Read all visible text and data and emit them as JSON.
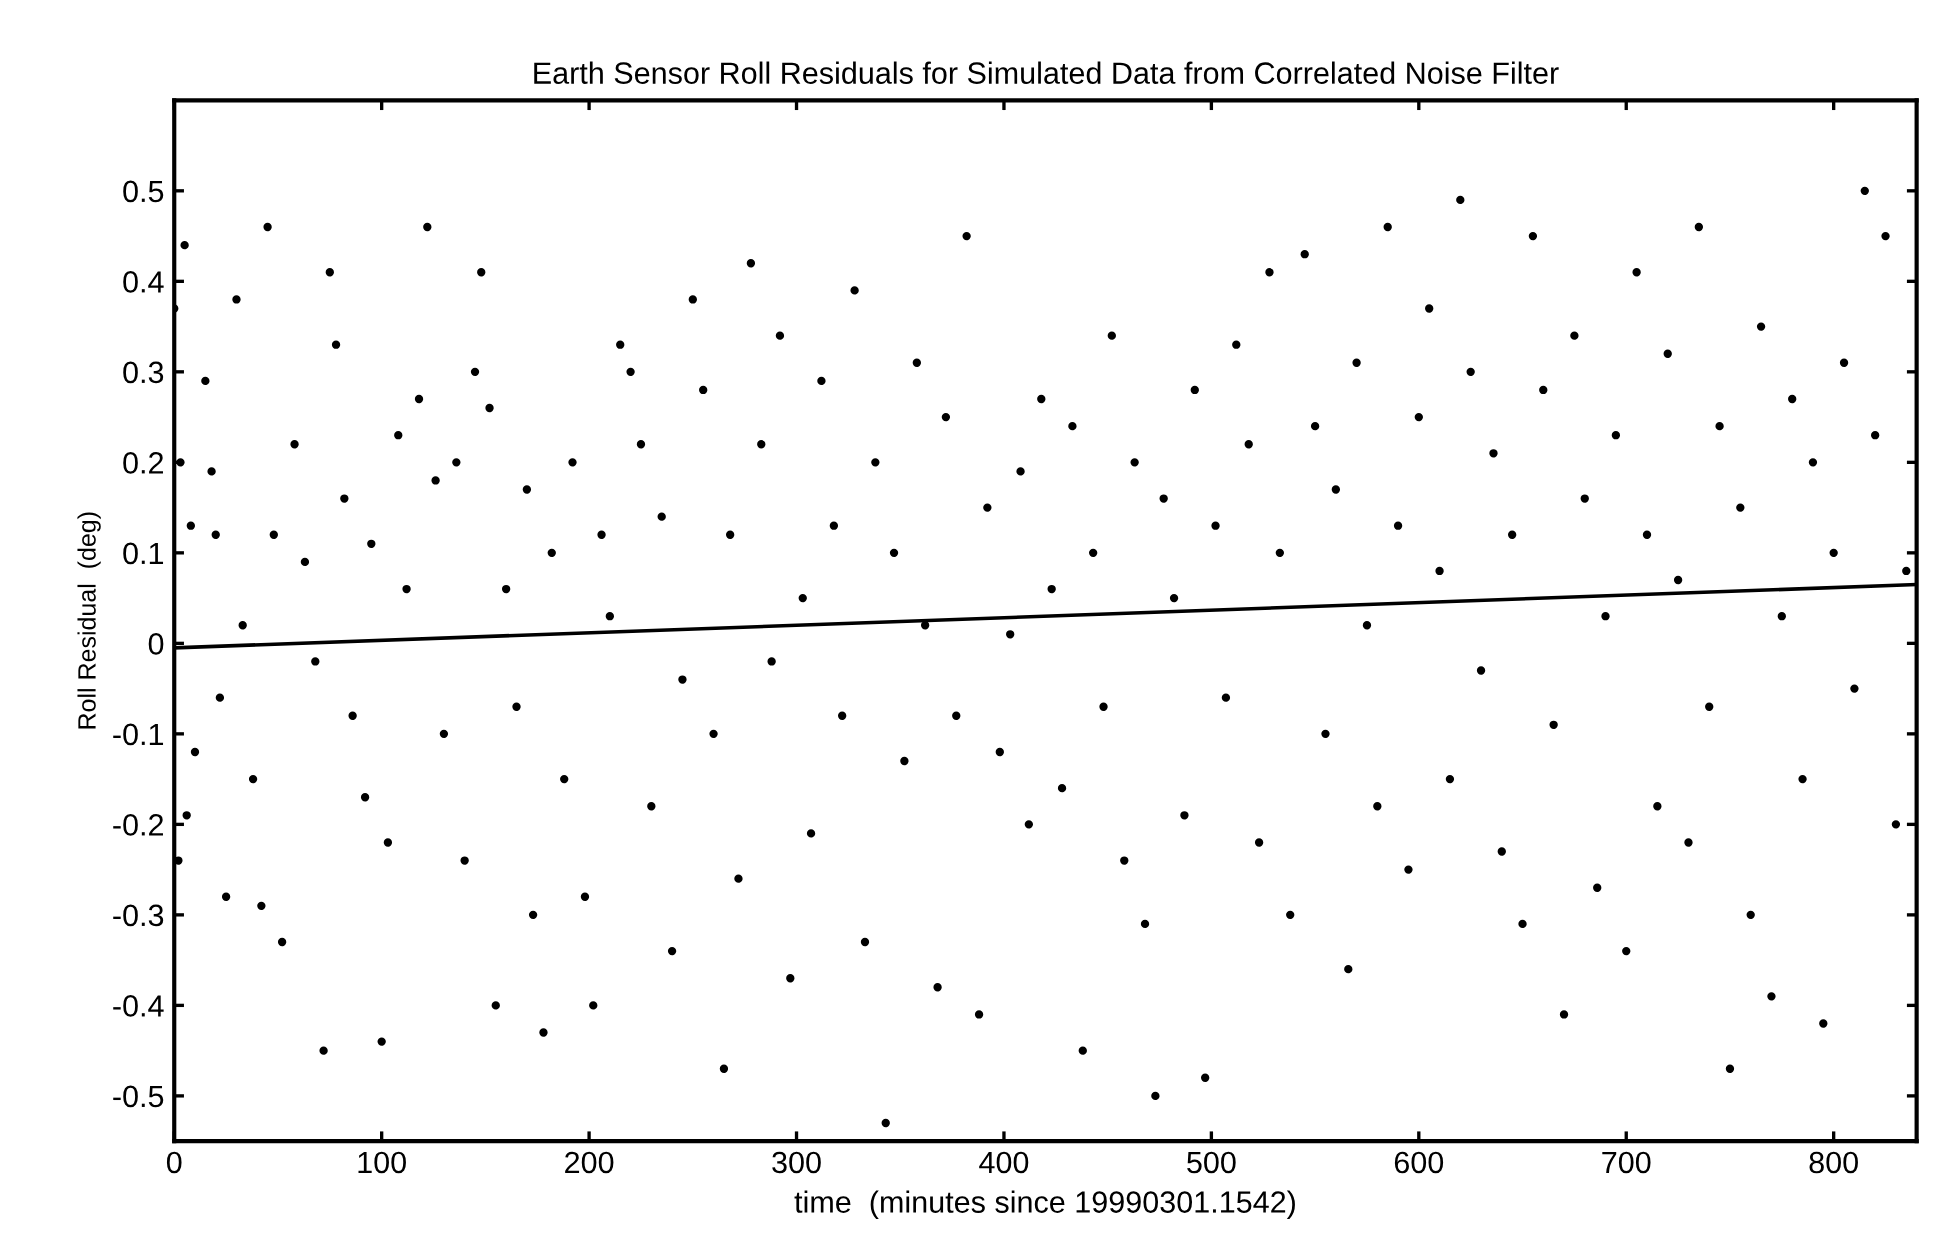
{
  "chart_data": {
    "type": "scatter",
    "title": "Earth Sensor Roll Residuals for Simulated Data from Correlated Noise Filter",
    "xlabel": "time  (minutes since 19990301.1542)",
    "ylabel": "Roll Residual  (deg)",
    "xlim": [
      0,
      840
    ],
    "ylim": [
      -0.55,
      0.6
    ],
    "xticks": [
      0,
      100,
      200,
      300,
      400,
      500,
      600,
      700,
      800
    ],
    "yticks": [
      -0.5,
      -0.4,
      -0.3,
      -0.2,
      -0.1,
      0,
      0.1,
      0.2,
      0.3,
      0.4,
      0.5
    ],
    "grid": false,
    "legend": false,
    "marker": "circle",
    "series": [
      {
        "color": "#000000",
        "x": [
          0,
          5,
          3,
          8,
          2,
          6,
          10,
          15,
          18,
          20,
          22,
          25,
          30,
          33,
          38,
          42,
          45,
          48,
          52,
          58,
          63,
          68,
          72,
          75,
          78,
          82,
          86,
          92,
          95,
          100,
          103,
          108,
          112,
          118,
          122,
          126,
          130,
          136,
          140,
          145,
          148,
          152,
          155,
          160,
          165,
          170,
          173,
          178,
          182,
          188,
          192,
          198,
          202,
          206,
          210,
          215,
          220,
          225,
          230,
          235,
          240,
          245,
          250,
          255,
          260,
          265,
          268,
          272,
          278,
          283,
          288,
          292,
          297,
          303,
          307,
          312,
          318,
          322,
          328,
          333,
          338,
          343,
          347,
          352,
          358,
          362,
          368,
          372,
          377,
          382,
          388,
          392,
          398,
          403,
          408,
          412,
          418,
          423,
          428,
          433,
          438,
          443,
          448,
          452,
          458,
          463,
          468,
          473,
          477,
          482,
          487,
          492,
          497,
          502,
          507,
          512,
          518,
          523,
          528,
          533,
          538,
          545,
          550,
          555,
          560,
          566,
          570,
          575,
          580,
          585,
          590,
          595,
          600,
          605,
          610,
          615,
          620,
          625,
          630,
          636,
          640,
          645,
          650,
          655,
          660,
          665,
          670,
          675,
          680,
          686,
          690,
          695,
          700,
          705,
          710,
          715,
          720,
          725,
          730,
          735,
          740,
          745,
          750,
          755,
          760,
          765,
          770,
          775,
          780,
          785,
          790,
          795,
          800,
          805,
          810,
          815,
          820,
          825,
          830,
          835
        ],
        "values": [
          0.37,
          0.44,
          0.2,
          0.13,
          -0.24,
          -0.19,
          -0.12,
          0.29,
          0.19,
          0.12,
          -0.06,
          -0.28,
          0.38,
          0.02,
          -0.15,
          -0.29,
          0.46,
          0.12,
          -0.33,
          0.22,
          0.09,
          -0.02,
          -0.45,
          0.41,
          0.33,
          0.16,
          -0.08,
          -0.17,
          0.11,
          -0.44,
          -0.22,
          0.23,
          0.06,
          0.27,
          0.46,
          0.18,
          -0.1,
          0.2,
          -0.24,
          0.3,
          0.41,
          0.26,
          -0.4,
          0.06,
          -0.07,
          0.17,
          -0.3,
          -0.43,
          0.1,
          -0.15,
          0.2,
          -0.28,
          -0.4,
          0.12,
          0.03,
          0.33,
          0.3,
          0.22,
          -0.18,
          0.14,
          -0.34,
          -0.04,
          0.38,
          0.28,
          -0.1,
          -0.47,
          0.12,
          -0.26,
          0.42,
          0.22,
          -0.02,
          0.34,
          -0.37,
          0.05,
          -0.21,
          0.29,
          0.13,
          -0.08,
          0.39,
          -0.33,
          0.2,
          -0.53,
          0.1,
          -0.13,
          0.31,
          0.02,
          -0.38,
          0.25,
          -0.08,
          0.45,
          -0.41,
          0.15,
          -0.12,
          0.01,
          0.19,
          -0.2,
          0.27,
          0.06,
          -0.16,
          0.24,
          -0.45,
          0.1,
          -0.07,
          0.34,
          -0.24,
          0.2,
          -0.31,
          -0.5,
          0.16,
          0.05,
          -0.19,
          0.28,
          -0.48,
          0.13,
          -0.06,
          0.33,
          0.22,
          -0.22,
          0.41,
          0.1,
          -0.3,
          0.43,
          0.24,
          -0.1,
          0.17,
          -0.36,
          0.31,
          0.02,
          -0.18,
          0.46,
          0.13,
          -0.25,
          0.25,
          0.37,
          0.08,
          -0.15,
          0.49,
          0.3,
          -0.03,
          0.21,
          -0.23,
          0.12,
          -0.31,
          0.45,
          0.28,
          -0.09,
          -0.41,
          0.34,
          0.16,
          -0.27,
          0.03,
          0.23,
          -0.34,
          0.41,
          0.12,
          -0.18,
          0.32,
          0.07,
          -0.22,
          0.46,
          -0.07,
          0.24,
          -0.47,
          0.15,
          -0.3,
          0.35,
          -0.39,
          0.03,
          0.27,
          -0.15,
          0.2,
          -0.42,
          0.1,
          0.31,
          -0.05,
          0.5,
          0.23,
          0.45,
          -0.2,
          0.08
        ]
      },
      {
        "type": "line",
        "color": "#000000",
        "marker": "none",
        "line_style": "solid",
        "x": [
          0,
          840
        ],
        "values": [
          -0.005,
          0.065
        ]
      }
    ]
  }
}
